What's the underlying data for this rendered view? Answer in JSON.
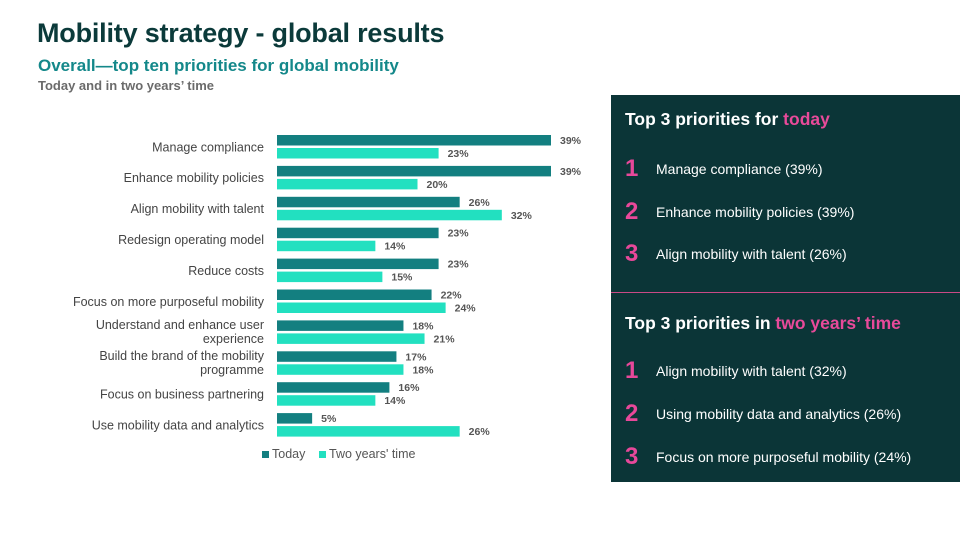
{
  "header": {
    "title": "Mobility strategy - global results",
    "subtitle": "Overall—top ten priorities for global mobility",
    "subsubtitle": "Today and in two years’ time"
  },
  "chart_data": {
    "type": "bar",
    "orientation": "horizontal",
    "title": "Overall—top ten priorities for global mobility",
    "categories": [
      [
        "Manage compliance"
      ],
      [
        "Enhance mobility policies"
      ],
      [
        "Align mobility with talent"
      ],
      [
        "Redesign operating model"
      ],
      [
        "Reduce costs"
      ],
      [
        "Focus on more purposeful mobility"
      ],
      [
        "Understand and enhance user",
        "experience"
      ],
      [
        "Build the brand of the mobility",
        "programme"
      ],
      [
        "Focus on business partnering"
      ],
      [
        "Use mobility data and analytics"
      ]
    ],
    "series": [
      {
        "name": "Today",
        "color": "#137f80",
        "values": [
          39,
          39,
          26,
          23,
          23,
          22,
          18,
          17,
          16,
          5
        ]
      },
      {
        "name": "Two years' time",
        "color": "#22e0c0",
        "values": [
          23,
          20,
          32,
          14,
          15,
          24,
          21,
          18,
          14,
          26
        ]
      }
    ],
    "value_suffix": "%",
    "xlim": [
      0,
      39
    ],
    "grid": false,
    "legend": "bottom"
  },
  "panel": {
    "today": {
      "heading_prefix": "Top 3 priorities for ",
      "heading_accent": "today",
      "items": [
        {
          "num": "1",
          "text": "Manage compliance (39%)"
        },
        {
          "num": "2",
          "text": "Enhance mobility policies (39%)"
        },
        {
          "num": "3",
          "text": "Align mobility with talent (26%)"
        }
      ]
    },
    "future": {
      "heading_prefix": "Top 3 priorities in ",
      "heading_accent": "two years’ time",
      "items": [
        {
          "num": "1",
          "text": "Align mobility with talent (32%)"
        },
        {
          "num": "2",
          "text": "Using mobility data and analytics (26%)"
        },
        {
          "num": "3",
          "text": "Focus on more purposeful mobility (24%)"
        }
      ]
    }
  }
}
